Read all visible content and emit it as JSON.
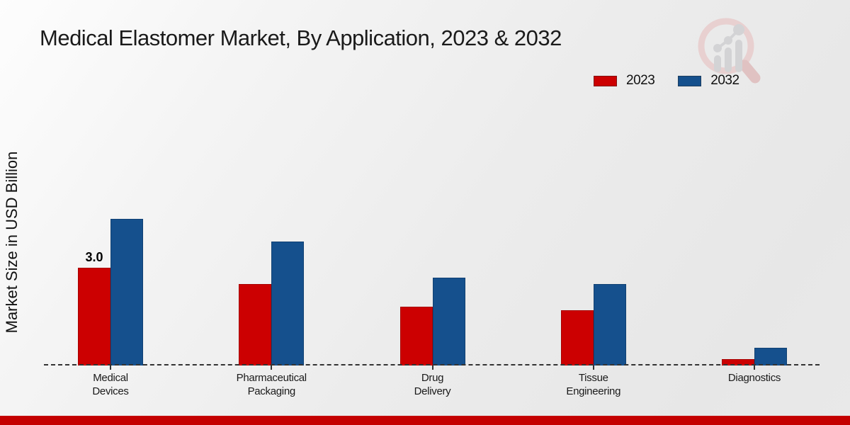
{
  "page": {
    "title": "Medical Elastomer Market, By Application, 2023 & 2032",
    "ylabel": "Market Size in USD Billion"
  },
  "legend": {
    "items": [
      {
        "label": "2023",
        "color": "#cc0001"
      },
      {
        "label": "2032",
        "color": "#15508d"
      }
    ]
  },
  "watermark": {
    "icon": "magnifier-bar-chart-logo"
  },
  "colors": {
    "series_2023": "#cc0001",
    "series_2032": "#15508d",
    "baseline": "#333333",
    "bottom_strip": "#c40000",
    "text": "#1a1a1a"
  },
  "chart_data": {
    "type": "bar",
    "title": "Medical Elastomer Market, By Application, 2023 & 2032",
    "xlabel": "",
    "ylabel": "Market Size in USD Billion",
    "categories": [
      "Medical Devices",
      "Pharmaceutical Packaging",
      "Drug Delivery",
      "Tissue Engineering",
      "Diagnostics"
    ],
    "category_label_lines": [
      [
        "Medical",
        "Devices"
      ],
      [
        "Pharmaceutical",
        "Packaging"
      ],
      [
        "Drug",
        "Delivery"
      ],
      [
        "Tissue",
        "Engineering"
      ],
      [
        "Diagnostics"
      ]
    ],
    "series": [
      {
        "name": "2023",
        "color": "#cc0001",
        "values": [
          3.0,
          2.5,
          1.8,
          1.7,
          0.2
        ]
      },
      {
        "name": "2032",
        "color": "#15508d",
        "values": [
          4.5,
          3.8,
          2.7,
          2.5,
          0.55
        ]
      }
    ],
    "bar_labels": [
      {
        "series_index": 0,
        "category_index": 0,
        "text": "3.0"
      }
    ],
    "ylim": [
      0,
      5
    ],
    "grid": false,
    "y_tick_labels_visible": false,
    "baseline_style": "dashed",
    "legend_position": "top-right"
  }
}
